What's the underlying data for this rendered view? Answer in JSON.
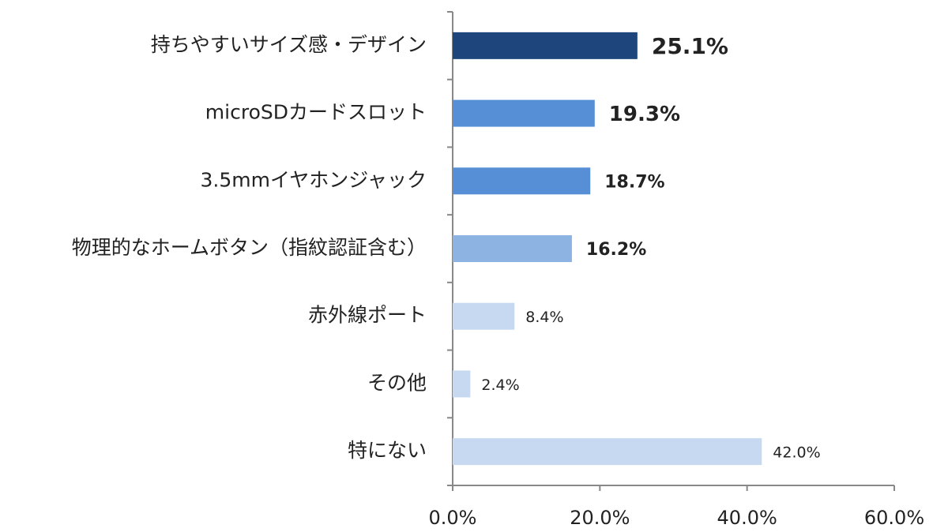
{
  "chart_data": {
    "type": "hbar",
    "categories": [
      "持ちやすいサイズ感・デザイン",
      "microSDカードスロット",
      "3.5mmイヤホンジャック",
      "物理的なホームボタン（指紋認証含む）",
      "赤外線ポート",
      "その他",
      "特にない"
    ],
    "values": [
      25.1,
      19.3,
      18.7,
      16.2,
      8.4,
      2.4,
      42.0
    ],
    "value_labels": [
      "25.1%",
      "19.3%",
      "18.7%",
      "16.2%",
      "8.4%",
      "2.4%",
      "42.0%"
    ],
    "colors": [
      "#1f467c",
      "#568fd6",
      "#568fd6",
      "#8db3e2",
      "#c6d9f1",
      "#c6d9f1",
      "#c6d9f1"
    ],
    "label_colors": [
      "#c00000",
      "#000000",
      "#000000",
      "#000000",
      "#222222",
      "#222222",
      "#222222"
    ],
    "xlim": [
      0,
      60
    ],
    "xticks": [
      {
        "value": 0,
        "label": "0.0%"
      },
      {
        "value": 20,
        "label": "20.0%"
      },
      {
        "value": 40,
        "label": "40.0%"
      },
      {
        "value": 60,
        "label": "60.0%"
      }
    ]
  }
}
